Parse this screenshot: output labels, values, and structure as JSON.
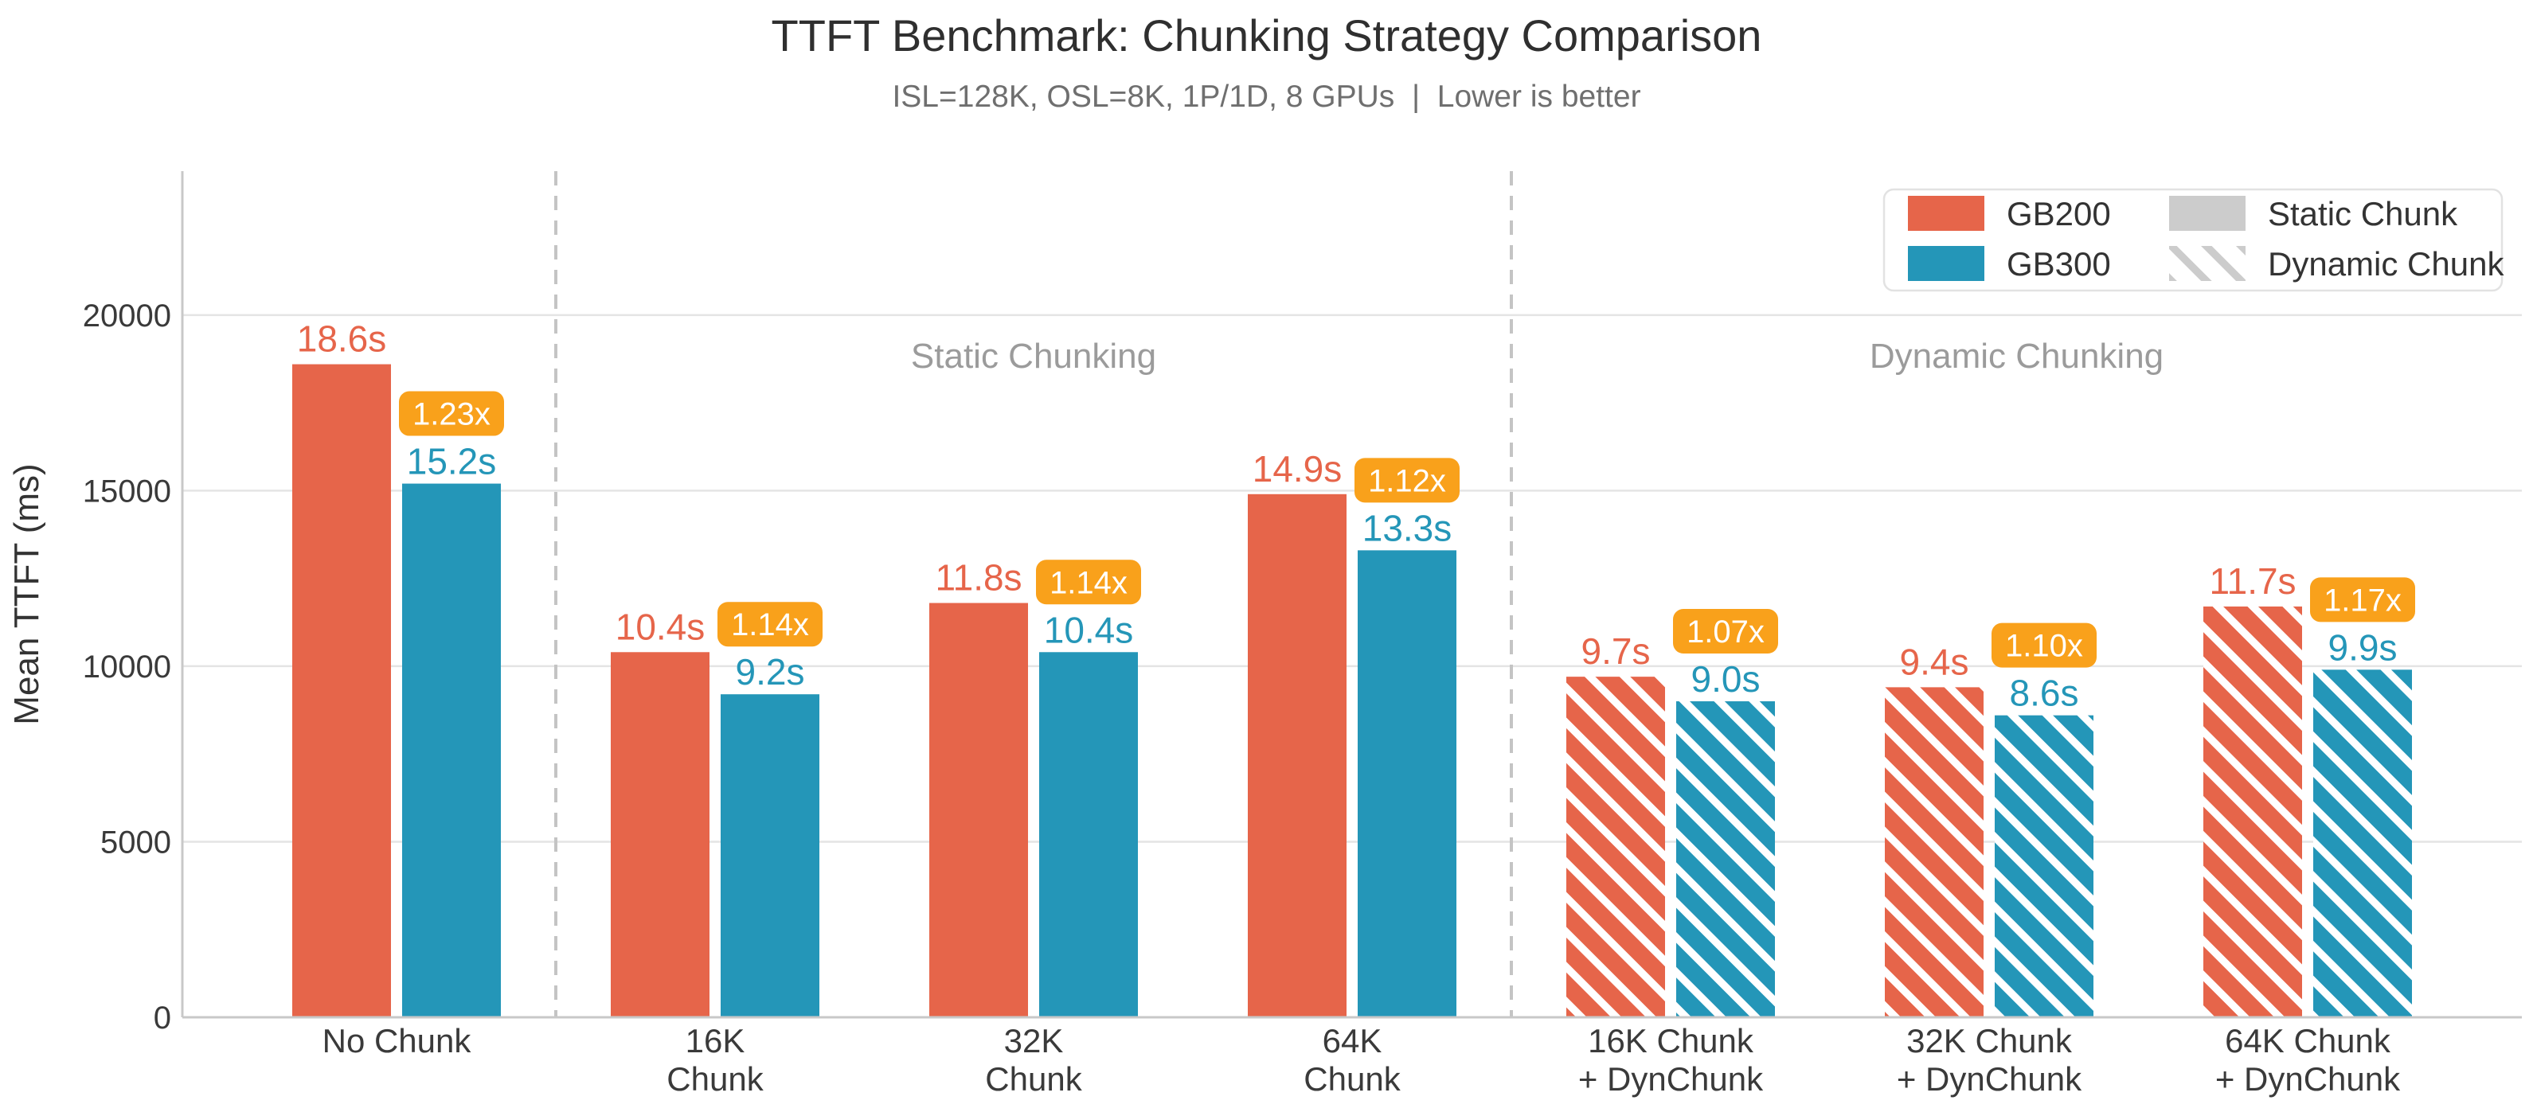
{
  "chart_data": {
    "type": "bar",
    "title": "TTFT Benchmark: Chunking Strategy Comparison",
    "subtitle": "ISL=128K, OSL=8K, 1P/1D, 8 GPUs  |  Lower is better",
    "ylabel": "Mean TTFT (ms)",
    "ylim": [
      0,
      24100
    ],
    "yticks": [
      0,
      5000,
      10000,
      15000,
      20000
    ],
    "grid": true,
    "legend_position": "upper right",
    "categories": [
      {
        "label_lines": [
          "No Chunk"
        ],
        "hatched": false
      },
      {
        "label_lines": [
          "16K",
          "Chunk"
        ],
        "hatched": false
      },
      {
        "label_lines": [
          "32K",
          "Chunk"
        ],
        "hatched": false
      },
      {
        "label_lines": [
          "64K",
          "Chunk"
        ],
        "hatched": false
      },
      {
        "label_lines": [
          "16K Chunk",
          "+ DynChunk"
        ],
        "hatched": true
      },
      {
        "label_lines": [
          "32K Chunk",
          "+ DynChunk"
        ],
        "hatched": true
      },
      {
        "label_lines": [
          "64K Chunk",
          "+ DynChunk"
        ],
        "hatched": true
      }
    ],
    "series": [
      {
        "name": "GB200",
        "color": "#E6654A",
        "values_ms": [
          18600,
          10400,
          11800,
          14900,
          9700,
          9400,
          11700
        ],
        "bar_labels": [
          "18.6s",
          "10.4s",
          "11.8s",
          "14.9s",
          "9.7s",
          "9.4s",
          "11.7s"
        ]
      },
      {
        "name": "GB300",
        "color": "#2496B8",
        "values_ms": [
          15200,
          9200,
          10400,
          13300,
          9000,
          8600,
          9900
        ],
        "bar_labels": [
          "15.2s",
          "9.2s",
          "10.4s",
          "13.3s",
          "9.0s",
          "8.6s",
          "9.9s"
        ]
      }
    ],
    "speedup_badges": {
      "background": "#F9A11B",
      "text_color": "#FFFFFF",
      "values": [
        "1.23x",
        "1.14x",
        "1.14x",
        "1.12x",
        "1.07x",
        "1.10x",
        "1.17x"
      ]
    },
    "sections": [
      {
        "label": "Static Chunking",
        "start_group": 1,
        "end_group": 3
      },
      {
        "label": "Dynamic Chunking",
        "start_group": 4,
        "end_group": 6
      }
    ],
    "separators_before_groups": [
      1,
      4
    ],
    "legend": {
      "series_entries": [
        {
          "label": "GB200",
          "color": "#E6654A",
          "hatched": false
        },
        {
          "label": "GB300",
          "color": "#2496B8",
          "hatched": false
        }
      ],
      "pattern_entries": [
        {
          "label": "Static Chunk",
          "color": "#CCCCCC",
          "hatched": false
        },
        {
          "label": "Dynamic Chunk",
          "color": "#CCCCCC",
          "hatched": true
        }
      ]
    },
    "colors": {
      "background": "#FFFFFF",
      "gridline": "#E4E4E4",
      "spine": "#C8C8C8",
      "separator": "#C4C4C4",
      "section_label": "#9B9B9B",
      "tick_label": "#3A3A3A",
      "axis_label": "#333333",
      "title": "#2F2F2F",
      "subtitle": "#6F6F6F",
      "legend_border": "#E2E2E2",
      "legend_text": "#333333",
      "hatch_stripe": "#FFFFFF"
    }
  }
}
